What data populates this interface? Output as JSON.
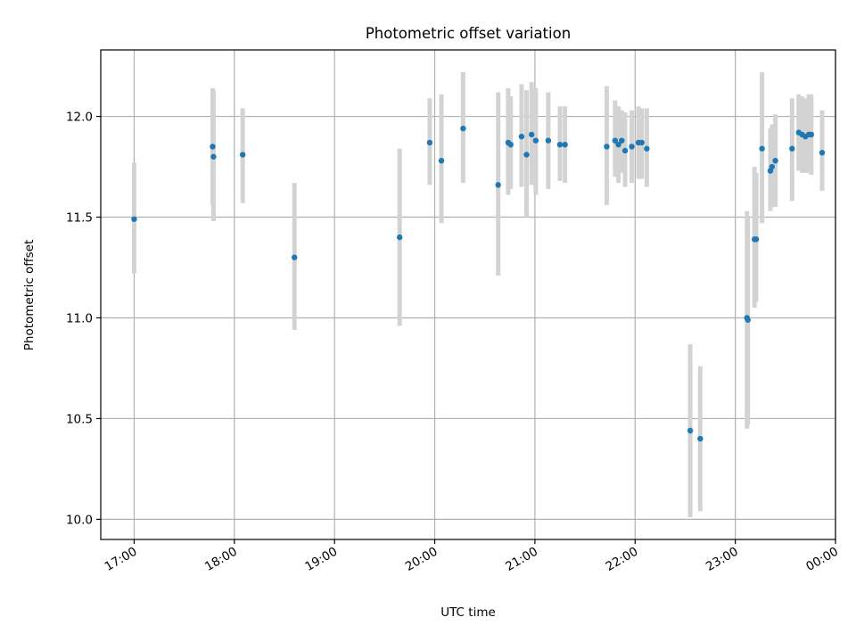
{
  "chart_data": {
    "type": "scatter",
    "title": "Photometric offset variation",
    "xlabel": "UTC time",
    "ylabel": "Photometric offset",
    "x_unit": "minutes since 17:00 UTC",
    "xlim": [
      -20,
      420
    ],
    "ylim": [
      9.9,
      12.33
    ],
    "grid": true,
    "x_ticks": [
      {
        "v": 0,
        "label": "17:00"
      },
      {
        "v": 60,
        "label": "18:00"
      },
      {
        "v": 120,
        "label": "19:00"
      },
      {
        "v": 180,
        "label": "20:00"
      },
      {
        "v": 240,
        "label": "21:00"
      },
      {
        "v": 300,
        "label": "22:00"
      },
      {
        "v": 360,
        "label": "23:00"
      },
      {
        "v": 420,
        "label": "00:00"
      }
    ],
    "y_ticks": [
      {
        "v": 10.0,
        "label": "10.0"
      },
      {
        "v": 10.5,
        "label": "10.5"
      },
      {
        "v": 11.0,
        "label": "11.0"
      },
      {
        "v": 11.5,
        "label": "11.5"
      },
      {
        "v": 12.0,
        "label": "12.0"
      }
    ],
    "colors": {
      "point": "#1f77b4",
      "errorbar": "#d3d3d3",
      "grid": "#b0b0b0"
    },
    "points": [
      {
        "x": 0.0,
        "y": 11.49,
        "lo": 11.22,
        "hi": 11.77
      },
      {
        "x": 47.0,
        "y": 11.85,
        "lo": 11.56,
        "hi": 12.14
      },
      {
        "x": 47.5,
        "y": 11.8,
        "lo": 11.48,
        "hi": 12.13
      },
      {
        "x": 65.0,
        "y": 11.81,
        "lo": 11.57,
        "hi": 12.04
      },
      {
        "x": 96.0,
        "y": 11.3,
        "lo": 10.94,
        "hi": 11.67
      },
      {
        "x": 159.0,
        "y": 11.4,
        "lo": 10.96,
        "hi": 11.84
      },
      {
        "x": 177.0,
        "y": 11.87,
        "lo": 11.66,
        "hi": 12.09
      },
      {
        "x": 184.0,
        "y": 11.78,
        "lo": 11.47,
        "hi": 12.11
      },
      {
        "x": 197.0,
        "y": 11.94,
        "lo": 11.67,
        "hi": 12.22
      },
      {
        "x": 218.0,
        "y": 11.66,
        "lo": 11.21,
        "hi": 12.12
      },
      {
        "x": 224.0,
        "y": 11.87,
        "lo": 11.61,
        "hi": 12.14
      },
      {
        "x": 225.5,
        "y": 11.86,
        "lo": 11.64,
        "hi": 12.1
      },
      {
        "x": 232.0,
        "y": 11.9,
        "lo": 11.65,
        "hi": 12.16
      },
      {
        "x": 235.0,
        "y": 11.81,
        "lo": 11.5,
        "hi": 12.13
      },
      {
        "x": 238.0,
        "y": 11.91,
        "lo": 11.66,
        "hi": 12.17
      },
      {
        "x": 240.5,
        "y": 11.88,
        "lo": 11.61,
        "hi": 12.14
      },
      {
        "x": 248.0,
        "y": 11.88,
        "lo": 11.64,
        "hi": 12.12
      },
      {
        "x": 255.0,
        "y": 11.86,
        "lo": 11.68,
        "hi": 12.05
      },
      {
        "x": 258.0,
        "y": 11.86,
        "lo": 11.67,
        "hi": 12.05
      },
      {
        "x": 283.0,
        "y": 11.85,
        "lo": 11.56,
        "hi": 12.15
      },
      {
        "x": 288.0,
        "y": 11.88,
        "lo": 11.7,
        "hi": 12.08
      },
      {
        "x": 290.0,
        "y": 11.86,
        "lo": 11.67,
        "hi": 12.05
      },
      {
        "x": 292.0,
        "y": 11.88,
        "lo": 11.72,
        "hi": 12.03
      },
      {
        "x": 294.0,
        "y": 11.83,
        "lo": 11.65,
        "hi": 12.02
      },
      {
        "x": 298.0,
        "y": 11.85,
        "lo": 11.67,
        "hi": 12.03
      },
      {
        "x": 302.0,
        "y": 11.87,
        "lo": 11.69,
        "hi": 12.05
      },
      {
        "x": 304.0,
        "y": 11.87,
        "lo": 11.69,
        "hi": 12.04
      },
      {
        "x": 307.0,
        "y": 11.84,
        "lo": 11.65,
        "hi": 12.04
      },
      {
        "x": 333.0,
        "y": 10.44,
        "lo": 10.01,
        "hi": 10.87
      },
      {
        "x": 339.0,
        "y": 10.4,
        "lo": 10.04,
        "hi": 10.76
      },
      {
        "x": 367.0,
        "y": 11.0,
        "lo": 10.45,
        "hi": 11.53
      },
      {
        "x": 367.5,
        "y": 10.99,
        "lo": 10.47,
        "hi": 11.5
      },
      {
        "x": 371.5,
        "y": 11.39,
        "lo": 11.05,
        "hi": 11.75
      },
      {
        "x": 372.5,
        "y": 11.39,
        "lo": 11.08,
        "hi": 11.72
      },
      {
        "x": 376.0,
        "y": 11.84,
        "lo": 11.47,
        "hi": 12.22
      },
      {
        "x": 381.0,
        "y": 11.73,
        "lo": 11.53,
        "hi": 11.94
      },
      {
        "x": 382.0,
        "y": 11.75,
        "lo": 11.55,
        "hi": 11.96
      },
      {
        "x": 384.0,
        "y": 11.78,
        "lo": 11.55,
        "hi": 12.01
      },
      {
        "x": 394.0,
        "y": 11.84,
        "lo": 11.58,
        "hi": 12.09
      },
      {
        "x": 398.0,
        "y": 11.92,
        "lo": 11.73,
        "hi": 12.11
      },
      {
        "x": 400.0,
        "y": 11.91,
        "lo": 11.72,
        "hi": 12.1
      },
      {
        "x": 402.0,
        "y": 11.9,
        "lo": 11.72,
        "hi": 12.09
      },
      {
        "x": 404.0,
        "y": 11.91,
        "lo": 11.72,
        "hi": 12.11
      },
      {
        "x": 405.5,
        "y": 11.91,
        "lo": 11.71,
        "hi": 12.11
      },
      {
        "x": 412.0,
        "y": 11.82,
        "lo": 11.63,
        "hi": 12.03
      }
    ]
  }
}
